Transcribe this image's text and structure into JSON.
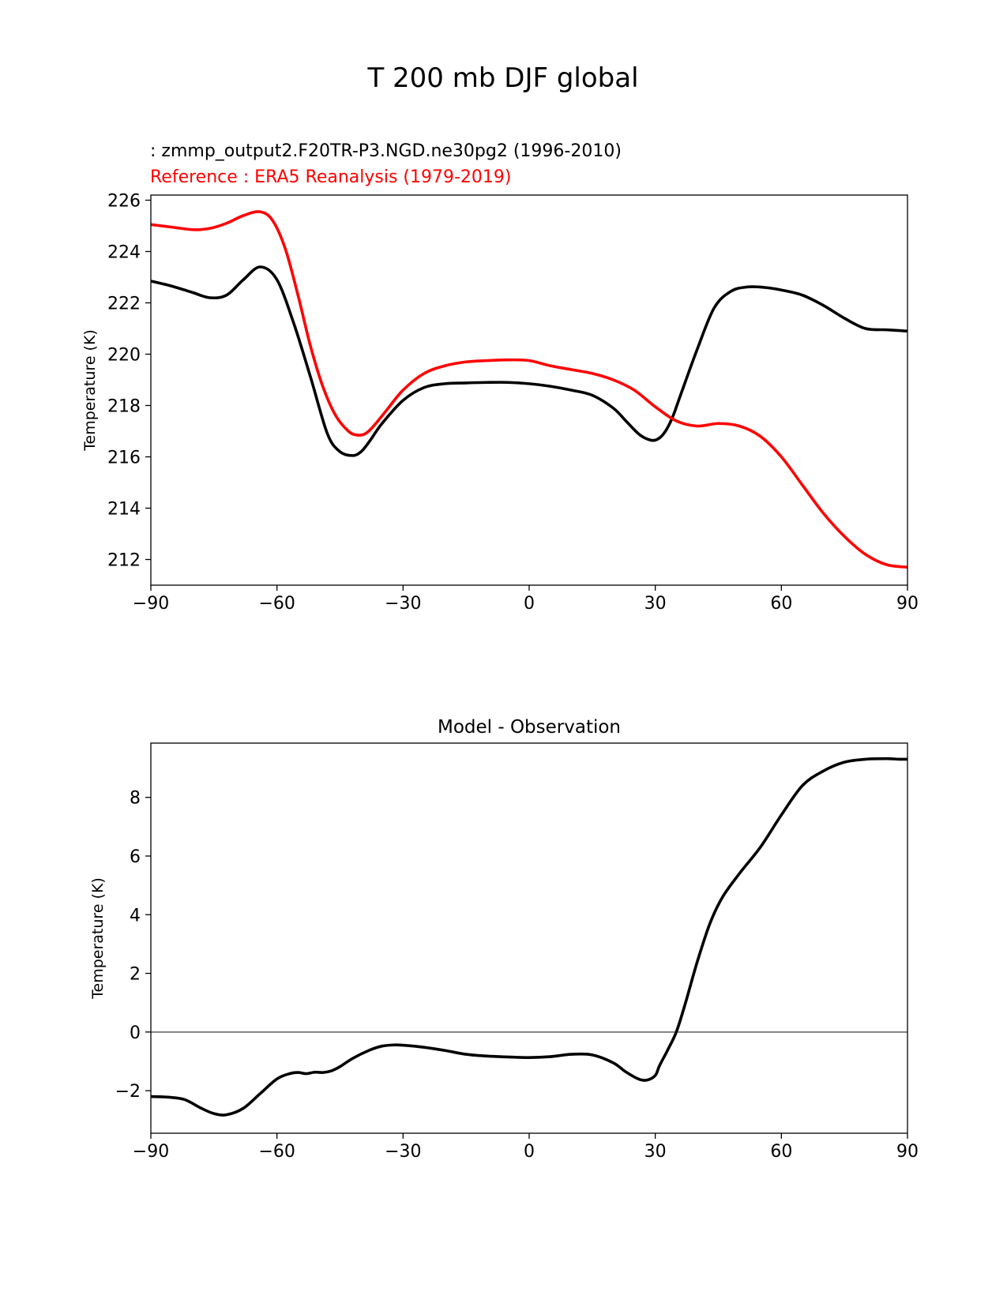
{
  "figure_title": "T 200 mb DJF global",
  "colors": {
    "test": "#000000",
    "reference": "#ff0000",
    "zero_line": "#808080"
  },
  "chart_data": [
    {
      "type": "line",
      "test_label": " : zmmp_output2.F20TR-P3.NGD.ne30pg2 (1996-2010)",
      "reference_label": "Reference : ERA5 Reanalysis (1979-2019)",
      "ylabel": "Temperature (K)",
      "xlabel": "",
      "xlim": [
        -90,
        90
      ],
      "ylim": [
        211,
        226.2
      ],
      "xticks": [
        -90,
        -60,
        -30,
        0,
        30,
        60,
        90
      ],
      "xtick_labels": [
        "−90",
        "−60",
        "−30",
        "0",
        "30",
        "60",
        "90"
      ],
      "yticks": [
        212,
        214,
        216,
        218,
        220,
        222,
        224,
        226
      ],
      "ytick_labels": [
        "212",
        "214",
        "216",
        "218",
        "220",
        "222",
        "224",
        "226"
      ],
      "series": [
        {
          "name": "test",
          "x": [
            -90,
            -85,
            -80,
            -76,
            -72,
            -68,
            -64,
            -60,
            -56,
            -52,
            -48,
            -45,
            -42,
            -40,
            -38,
            -35,
            -30,
            -25,
            -20,
            -15,
            -10,
            -5,
            0,
            5,
            10,
            15,
            20,
            23,
            26,
            28,
            30,
            32,
            34,
            36,
            40,
            44,
            48,
            52,
            56,
            60,
            65,
            70,
            75,
            80,
            85,
            90
          ],
          "values": [
            222.85,
            222.65,
            222.4,
            222.2,
            222.3,
            222.9,
            223.4,
            222.9,
            221.2,
            219.1,
            216.9,
            216.2,
            216.05,
            216.2,
            216.6,
            217.3,
            218.2,
            218.7,
            218.85,
            218.88,
            218.9,
            218.9,
            218.85,
            218.75,
            218.6,
            218.4,
            217.9,
            217.4,
            216.9,
            216.7,
            216.65,
            216.9,
            217.5,
            218.4,
            220.2,
            221.8,
            222.45,
            222.62,
            222.6,
            222.5,
            222.3,
            221.9,
            221.4,
            221.0,
            220.95,
            220.9
          ]
        },
        {
          "name": "reference",
          "x": [
            -90,
            -85,
            -80,
            -76,
            -72,
            -68,
            -64,
            -61,
            -58,
            -55,
            -52,
            -49,
            -46,
            -43,
            -41,
            -39,
            -37,
            -34,
            -30,
            -25,
            -20,
            -15,
            -10,
            -5,
            0,
            5,
            10,
            15,
            20,
            25,
            30,
            35,
            40,
            45,
            50,
            55,
            60,
            65,
            70,
            75,
            80,
            85,
            90
          ],
          "values": [
            225.05,
            224.95,
            224.85,
            224.9,
            225.1,
            225.4,
            225.55,
            225.2,
            224.1,
            222.3,
            220.3,
            218.7,
            217.6,
            217.0,
            216.85,
            216.9,
            217.2,
            217.8,
            218.6,
            219.25,
            219.55,
            219.7,
            219.75,
            219.78,
            219.75,
            219.55,
            219.4,
            219.25,
            219.0,
            218.6,
            217.95,
            217.4,
            217.2,
            217.3,
            217.2,
            216.8,
            216.0,
            214.9,
            213.8,
            212.9,
            212.2,
            211.8,
            211.7
          ]
        }
      ]
    },
    {
      "type": "line",
      "title": "Model - Observation",
      "ylabel": "Temperature (K)",
      "xlabel": "",
      "xlim": [
        -90,
        90
      ],
      "ylim": [
        -3.45,
        9.85
      ],
      "xticks": [
        -90,
        -60,
        -30,
        0,
        30,
        60,
        90
      ],
      "xtick_labels": [
        "−90",
        "−60",
        "−30",
        "0",
        "30",
        "60",
        "90"
      ],
      "yticks": [
        -2,
        0,
        2,
        4,
        6,
        8
      ],
      "ytick_labels": [
        "−2",
        "0",
        "2",
        "4",
        "6",
        "8"
      ],
      "zero_line": 0,
      "series": [
        {
          "name": "difference",
          "x": [
            -90,
            -86,
            -82,
            -78,
            -75,
            -72,
            -68,
            -64,
            -60,
            -57,
            -55,
            -53,
            -51,
            -49,
            -47,
            -45,
            -42,
            -38,
            -35,
            -32,
            -30,
            -25,
            -20,
            -15,
            -10,
            -5,
            0,
            5,
            10,
            15,
            20,
            23,
            26,
            28,
            30,
            31,
            33,
            35,
            37,
            40,
            43,
            46,
            50,
            55,
            60,
            65,
            70,
            75,
            80,
            85,
            88,
            90
          ],
          "values": [
            -2.2,
            -2.22,
            -2.3,
            -2.6,
            -2.78,
            -2.82,
            -2.6,
            -2.1,
            -1.6,
            -1.42,
            -1.38,
            -1.42,
            -1.37,
            -1.38,
            -1.32,
            -1.18,
            -0.9,
            -0.62,
            -0.48,
            -0.44,
            -0.45,
            -0.52,
            -0.63,
            -0.76,
            -0.82,
            -0.85,
            -0.87,
            -0.84,
            -0.76,
            -0.78,
            -1.05,
            -1.36,
            -1.6,
            -1.64,
            -1.48,
            -1.15,
            -0.6,
            0.0,
            0.9,
            2.4,
            3.7,
            4.6,
            5.4,
            6.3,
            7.4,
            8.4,
            8.9,
            9.2,
            9.3,
            9.32,
            9.3,
            9.3
          ]
        }
      ]
    }
  ]
}
